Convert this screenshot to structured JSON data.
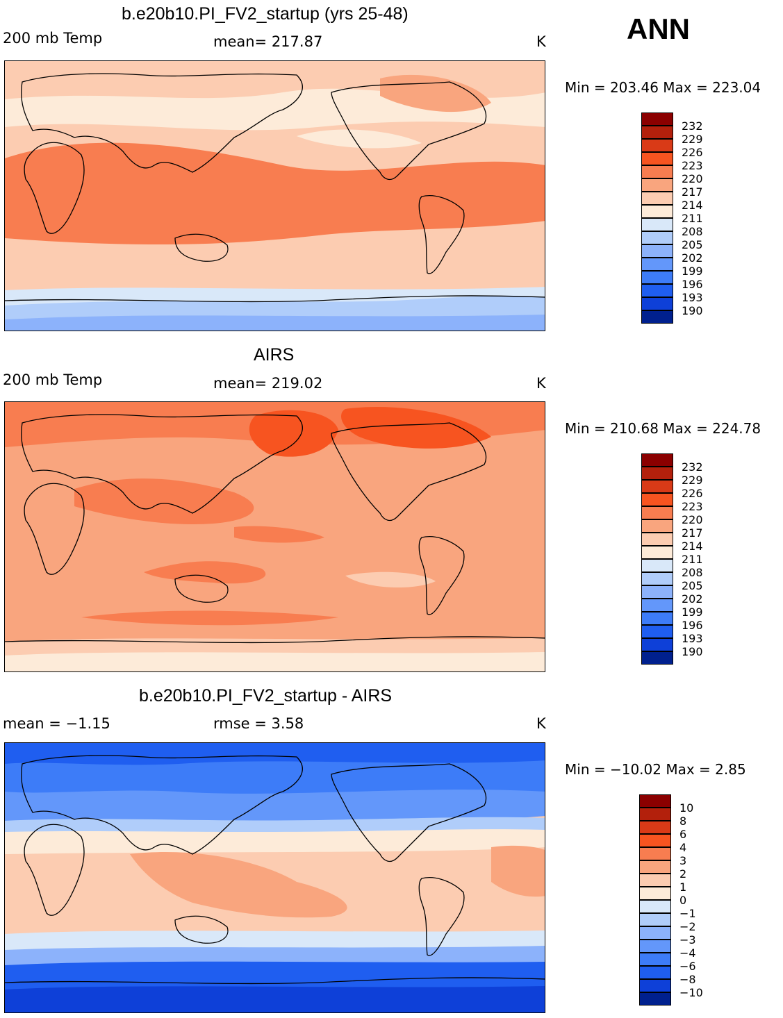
{
  "season": "ANN",
  "panels": [
    {
      "title": "b.e20b10.PI_FV2_startup (yrs 25-48)",
      "left_label": "200 mb Temp",
      "center_label": "mean= 217.87",
      "units": "K",
      "minmax": "Min = 203.46 Max = 223.04",
      "colorbar": {
        "labels": [
          "232",
          "229",
          "226",
          "223",
          "220",
          "217",
          "214",
          "211",
          "208",
          "205",
          "202",
          "199",
          "196",
          "193",
          "190"
        ],
        "colors": [
          "#8b0000",
          "#b3200c",
          "#d93a17",
          "#f75420",
          "#f87d50",
          "#f9a57e",
          "#fcccb1",
          "#fdebd9",
          "#d9e8f9",
          "#b0cdfa",
          "#8cb2fb",
          "#6397fa",
          "#3d7cf8",
          "#1f5ef0",
          "#0e40d8",
          "#00208e"
        ]
      }
    },
    {
      "title": "AIRS",
      "left_label": "200 mb Temp",
      "center_label": "mean= 219.02",
      "units": "K",
      "minmax": "Min = 210.68 Max = 224.78",
      "colorbar": {
        "labels": [
          "232",
          "229",
          "226",
          "223",
          "220",
          "217",
          "214",
          "211",
          "208",
          "205",
          "202",
          "199",
          "196",
          "193",
          "190"
        ],
        "colors": [
          "#8b0000",
          "#b3200c",
          "#d93a17",
          "#f75420",
          "#f87d50",
          "#f9a57e",
          "#fcccb1",
          "#fdebd9",
          "#d9e8f9",
          "#b0cdfa",
          "#8cb2fb",
          "#6397fa",
          "#3d7cf8",
          "#1f5ef0",
          "#0e40d8",
          "#00208e"
        ]
      }
    },
    {
      "title": "b.e20b10.PI_FV2_startup - AIRS",
      "left_label": "mean =   −1.15",
      "center_label": "rmse =    3.58",
      "units": "K",
      "minmax": "Min = −10.02 Max =    2.85",
      "colorbar": {
        "labels": [
          "10",
          "8",
          "6",
          "4",
          "3",
          "2",
          "1",
          "0",
          "−1",
          "−2",
          "−3",
          "−4",
          "−6",
          "−8",
          "−10"
        ],
        "colors": [
          "#8b0000",
          "#b3200c",
          "#d93a17",
          "#f75420",
          "#f87d50",
          "#f9a57e",
          "#fcccb1",
          "#fdebd9",
          "#d9e8f9",
          "#b0cdfa",
          "#8cb2fb",
          "#6397fa",
          "#3d7cf8",
          "#1f5ef0",
          "#0e40d8",
          "#00208e"
        ]
      }
    }
  ]
}
